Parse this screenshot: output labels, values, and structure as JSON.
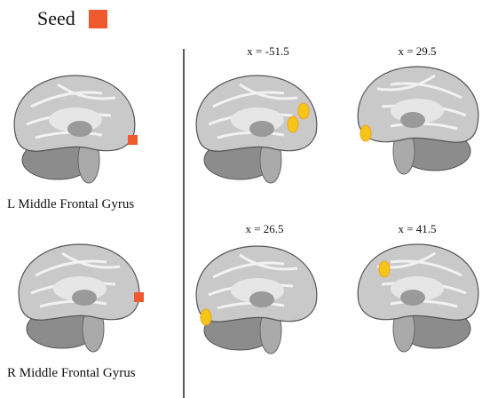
{
  "legend": {
    "label": "Seed",
    "color": "#ee5a2e"
  },
  "seeds": [
    {
      "label": "L Middle Frontal Gyrus"
    },
    {
      "label": "R Middle Frontal Gyrus"
    }
  ],
  "slices": [
    {
      "label": "x = -51.5"
    },
    {
      "label": "x = 29.5"
    },
    {
      "label": "x = 26.5"
    },
    {
      "label": "x = 41.5"
    }
  ]
}
